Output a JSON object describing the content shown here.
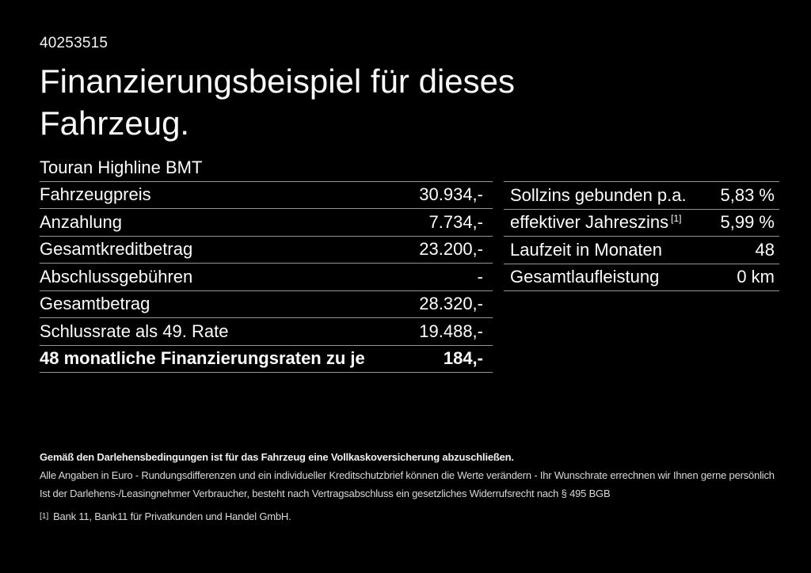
{
  "page": {
    "id_number": "40253515",
    "title_line1": "Finanzierungsbeispiel für dieses",
    "title_line2": "Fahrzeug.",
    "subtitle": "Touran Highline BMT"
  },
  "left_table": {
    "rows": [
      {
        "label": "Fahrzeugpreis",
        "value": "30.934,-"
      },
      {
        "label": "Anzahlung",
        "value": "7.734,-"
      },
      {
        "label": "Gesamtkreditbetrag",
        "value": "23.200,-"
      },
      {
        "label": "Abschlussgebühren",
        "value": "-"
      },
      {
        "label": "Gesamtbetrag",
        "value": "28.320,-"
      },
      {
        "label": "Schlussrate als 49. Rate",
        "value": "19.488,-"
      },
      {
        "label": "48 monatliche Finanzierungsraten zu je",
        "value": "184,-"
      }
    ]
  },
  "right_table": {
    "rows": [
      {
        "label": "Sollzins gebunden p.a.",
        "sup": "",
        "value": "5,83 %"
      },
      {
        "label": "effektiver Jahreszins",
        "sup": "[1]",
        "value": "5,99 %"
      },
      {
        "label": "Laufzeit in Monaten",
        "sup": "",
        "value": "48"
      },
      {
        "label": "Gesamtlaufleistung",
        "sup": "",
        "value": "0 km"
      }
    ]
  },
  "footer": {
    "bold_note": "Gemäß den Darlehensbedingungen ist für das Fahrzeug eine Vollkaskoversicherung abzuschließen.",
    "note2": "Alle Angaben in Euro - Rundungsdifferenzen und ein individueller Kreditschutzbrief können die Werte verändern - Ihr Wunschrate errechnen wir Ihnen gerne persönlich",
    "note3": "Ist der Darlehens-/Leasingnehmer Verbraucher, besteht nach Vertragsabschluss ein gesetzliches Widerrufsrecht nach § 495 BGB",
    "footnote_marker": "[1]",
    "footnote_text": "Bank 11, Bank11 für Privatkunden und Handel GmbH."
  },
  "colors": {
    "background": "#000000",
    "text": "#ffffff",
    "divider": "#969696"
  }
}
